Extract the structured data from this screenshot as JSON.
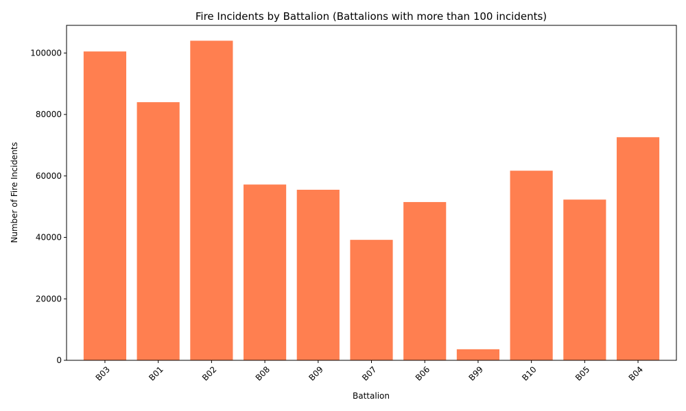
{
  "chart_data": {
    "type": "bar",
    "title": "Fire Incidents by Battalion (Battalions with more than 100 incidents)",
    "xlabel": "Battalion",
    "ylabel": "Number of Fire Incidents",
    "categories": [
      "B03",
      "B01",
      "B02",
      "B08",
      "B09",
      "B07",
      "B06",
      "B99",
      "B10",
      "B05",
      "B04"
    ],
    "values": [
      100500,
      84000,
      104000,
      57200,
      55500,
      39200,
      51500,
      3600,
      61700,
      52300,
      72600
    ],
    "ylim": [
      0,
      109000
    ],
    "yticks": [
      0,
      20000,
      40000,
      60000,
      80000,
      100000
    ],
    "bar_color": "#ff7f50",
    "grid": false,
    "x_tick_rotation_deg": 45
  }
}
